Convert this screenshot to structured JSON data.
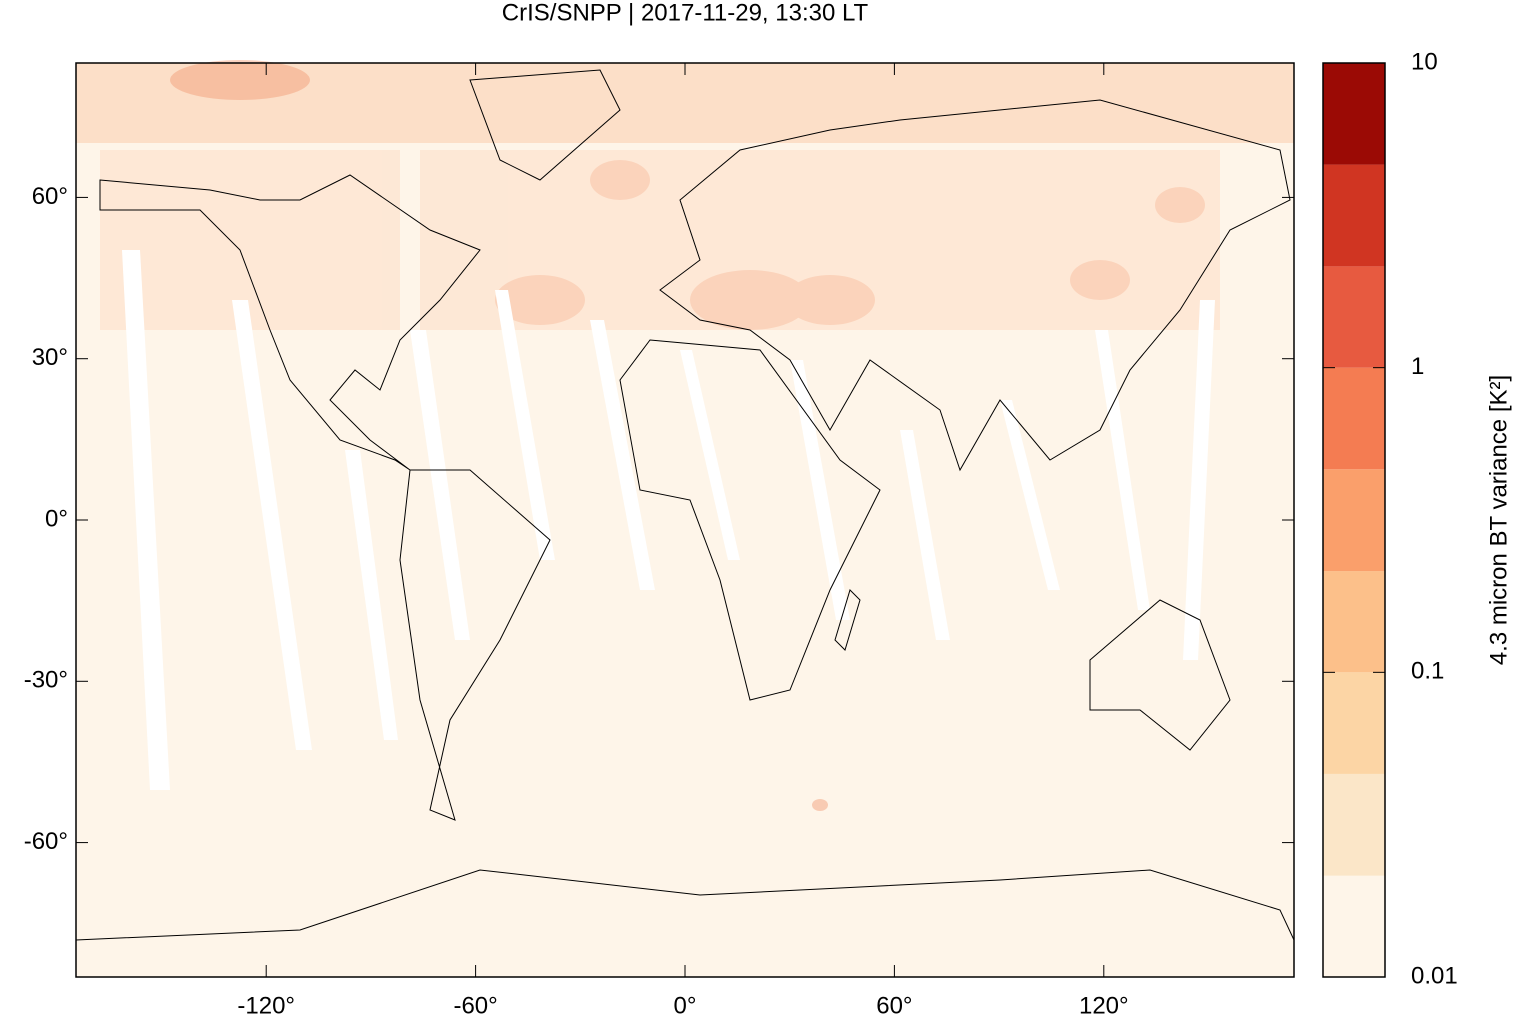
{
  "chart_data": {
    "type": "map",
    "title": "CrIS/SNPP | 2017-11-29, 13:30 LT",
    "xlim": [
      -174.5,
      174.5
    ],
    "ylim": [
      -85,
      85
    ],
    "xticks": [
      {
        "value": -120,
        "label": "-120°"
      },
      {
        "value": -60,
        "label": "-60°"
      },
      {
        "value": 0,
        "label": "0°"
      },
      {
        "value": 60,
        "label": "60°"
      },
      {
        "value": 120,
        "label": "120°"
      }
    ],
    "yticks": [
      {
        "value": -60,
        "label": "-60°"
      },
      {
        "value": -30,
        "label": "-30°"
      },
      {
        "value": 0,
        "label": "0°"
      },
      {
        "value": 30,
        "label": "30°"
      },
      {
        "value": 60,
        "label": "60°"
      }
    ],
    "colorbar": {
      "label": "4.3 micron BT variance [K²]",
      "log": true,
      "lim": [
        0.01,
        10
      ],
      "ticks": [
        0.01,
        0.1,
        1,
        10
      ],
      "levels": [
        0.01,
        0.0215,
        0.0464,
        0.1,
        0.215,
        0.464,
        1,
        2.15,
        4.64,
        10
      ],
      "colors": [
        "#fef5e9",
        "#fbe6c8",
        "#fcd5a5",
        "#fcc08a",
        "#fa9f6b",
        "#f47c52",
        "#e75a40",
        "#d03522",
        "#9b0a05"
      ]
    }
  }
}
